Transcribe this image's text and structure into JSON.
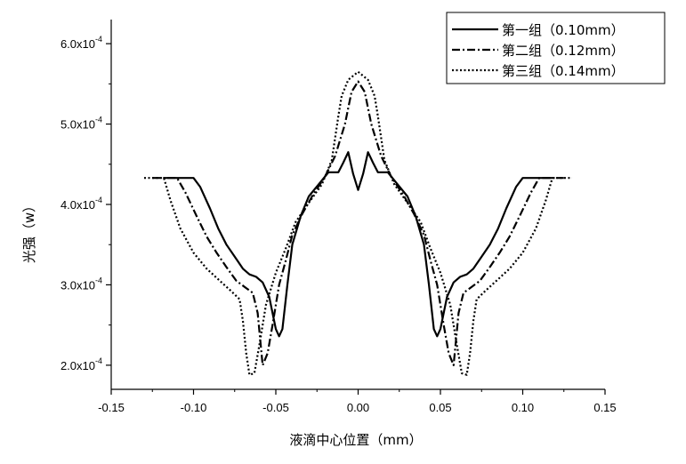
{
  "chart_data": {
    "type": "line",
    "xlabel": "液滴中心位置（mm）",
    "ylabel": "光强（w）",
    "xlim": [
      -0.15,
      0.15
    ],
    "ylim": [
      0.00017,
      0.00063
    ],
    "x_ticks": [
      "-0.15",
      "-0.10",
      "-0.05",
      "0.00",
      "0.05",
      "0.10",
      "0.15"
    ],
    "y_ticks": [
      {
        "mant": "2.0x10",
        "exp": "-4",
        "value": 0.0002
      },
      {
        "mant": "3.0x10",
        "exp": "-4",
        "value": 0.0003
      },
      {
        "mant": "4.0x10",
        "exp": "-4",
        "value": 0.0004
      },
      {
        "mant": "5.0x10",
        "exp": "-4",
        "value": 0.0005
      },
      {
        "mant": "6.0x10",
        "exp": "-4",
        "value": 0.0006
      }
    ],
    "legend_position": "top-right",
    "series": [
      {
        "name": "第一组（0.10mm）",
        "dash": "solid",
        "color": "#000000",
        "points": [
          [
            -0.118,
            0.000433
          ],
          [
            -0.1,
            0.000433
          ],
          [
            -0.096,
            0.000422
          ],
          [
            -0.09,
            0.000395
          ],
          [
            -0.085,
            0.00037
          ],
          [
            -0.08,
            0.00035
          ],
          [
            -0.075,
            0.000335
          ],
          [
            -0.07,
            0.00032
          ],
          [
            -0.066,
            0.000313
          ],
          [
            -0.062,
            0.00031
          ],
          [
            -0.058,
            0.000303
          ],
          [
            -0.054,
            0.000285
          ],
          [
            -0.05,
            0.000245
          ],
          [
            -0.048,
            0.000236
          ],
          [
            -0.046,
            0.000245
          ],
          [
            -0.043,
            0.0003
          ],
          [
            -0.04,
            0.00035
          ],
          [
            -0.035,
            0.000385
          ],
          [
            -0.03,
            0.00041
          ],
          [
            -0.024,
            0.000425
          ],
          [
            -0.018,
            0.00044
          ],
          [
            -0.012,
            0.00044
          ],
          [
            -0.009,
            0.000452
          ],
          [
            -0.006,
            0.000465
          ],
          [
            -0.003,
            0.000438
          ],
          [
            0.0,
            0.000418
          ],
          [
            0.003,
            0.000438
          ],
          [
            0.006,
            0.000465
          ],
          [
            0.009,
            0.000452
          ],
          [
            0.012,
            0.00044
          ],
          [
            0.018,
            0.00044
          ],
          [
            0.024,
            0.000425
          ],
          [
            0.03,
            0.00041
          ],
          [
            0.035,
            0.000385
          ],
          [
            0.04,
            0.00035
          ],
          [
            0.043,
            0.0003
          ],
          [
            0.046,
            0.000245
          ],
          [
            0.048,
            0.000236
          ],
          [
            0.05,
            0.000245
          ],
          [
            0.054,
            0.000285
          ],
          [
            0.058,
            0.000303
          ],
          [
            0.062,
            0.00031
          ],
          [
            0.066,
            0.000313
          ],
          [
            0.07,
            0.00032
          ],
          [
            0.075,
            0.000335
          ],
          [
            0.08,
            0.00035
          ],
          [
            0.085,
            0.00037
          ],
          [
            0.09,
            0.000395
          ],
          [
            0.096,
            0.000422
          ],
          [
            0.1,
            0.000433
          ],
          [
            0.118,
            0.000433
          ]
        ]
      },
      {
        "name": "第二组（0.12mm）",
        "dash": "dashdot",
        "color": "#000000",
        "points": [
          [
            -0.125,
            0.000433
          ],
          [
            -0.11,
            0.000433
          ],
          [
            -0.105,
            0.000415
          ],
          [
            -0.098,
            0.000385
          ],
          [
            -0.092,
            0.00036
          ],
          [
            -0.086,
            0.00034
          ],
          [
            -0.08,
            0.000322
          ],
          [
            -0.074,
            0.000305
          ],
          [
            -0.068,
            0.000296
          ],
          [
            -0.064,
            0.00029
          ],
          [
            -0.061,
            0.000265
          ],
          [
            -0.058,
            0.0002
          ],
          [
            -0.055,
            0.000215
          ],
          [
            -0.052,
            0.00025
          ],
          [
            -0.048,
            0.0003
          ],
          [
            -0.044,
            0.00033
          ],
          [
            -0.04,
            0.000362
          ],
          [
            -0.034,
            0.000388
          ],
          [
            -0.028,
            0.00041
          ],
          [
            -0.02,
            0.000435
          ],
          [
            -0.014,
            0.00046
          ],
          [
            -0.008,
            0.0005
          ],
          [
            -0.004,
            0.00054
          ],
          [
            0.0,
            0.000553
          ],
          [
            0.004,
            0.00054
          ],
          [
            0.008,
            0.0005
          ],
          [
            0.014,
            0.00046
          ],
          [
            0.02,
            0.000435
          ],
          [
            0.028,
            0.00041
          ],
          [
            0.034,
            0.000388
          ],
          [
            0.04,
            0.000362
          ],
          [
            0.044,
            0.00033
          ],
          [
            0.048,
            0.0003
          ],
          [
            0.052,
            0.00025
          ],
          [
            0.055,
            0.000215
          ],
          [
            0.058,
            0.0002
          ],
          [
            0.061,
            0.000265
          ],
          [
            0.064,
            0.00029
          ],
          [
            0.068,
            0.000296
          ],
          [
            0.074,
            0.000305
          ],
          [
            0.08,
            0.000322
          ],
          [
            0.086,
            0.00034
          ],
          [
            0.092,
            0.00036
          ],
          [
            0.098,
            0.000385
          ],
          [
            0.105,
            0.000415
          ],
          [
            0.11,
            0.000433
          ],
          [
            0.125,
            0.000433
          ]
        ]
      },
      {
        "name": "第三组（0.14mm）",
        "dash": "dotted",
        "color": "#000000",
        "points": [
          [
            -0.13,
            0.000433
          ],
          [
            -0.118,
            0.000433
          ],
          [
            -0.114,
            0.000405
          ],
          [
            -0.108,
            0.00037
          ],
          [
            -0.1,
            0.00034
          ],
          [
            -0.092,
            0.00032
          ],
          [
            -0.084,
            0.000305
          ],
          [
            -0.077,
            0.000292
          ],
          [
            -0.072,
            0.000282
          ],
          [
            -0.07,
            0.000255
          ],
          [
            -0.068,
            0.000215
          ],
          [
            -0.066,
            0.000188
          ],
          [
            -0.063,
            0.00019
          ],
          [
            -0.06,
            0.000225
          ],
          [
            -0.056,
            0.000275
          ],
          [
            -0.05,
            0.000315
          ],
          [
            -0.044,
            0.000345
          ],
          [
            -0.038,
            0.000378
          ],
          [
            -0.03,
            0.000402
          ],
          [
            -0.022,
            0.000425
          ],
          [
            -0.016,
            0.000455
          ],
          [
            -0.012,
            0.00051
          ],
          [
            -0.01,
            0.000535
          ],
          [
            -0.006,
            0.000555
          ],
          [
            0.0,
            0.000565
          ],
          [
            0.006,
            0.000555
          ],
          [
            0.01,
            0.000535
          ],
          [
            0.012,
            0.00051
          ],
          [
            0.016,
            0.000455
          ],
          [
            0.022,
            0.000425
          ],
          [
            0.03,
            0.000402
          ],
          [
            0.038,
            0.000378
          ],
          [
            0.044,
            0.000345
          ],
          [
            0.05,
            0.000315
          ],
          [
            0.056,
            0.000275
          ],
          [
            0.06,
            0.000225
          ],
          [
            0.063,
            0.00019
          ],
          [
            0.066,
            0.000188
          ],
          [
            0.068,
            0.000215
          ],
          [
            0.07,
            0.000255
          ],
          [
            0.072,
            0.000282
          ],
          [
            0.077,
            0.000292
          ],
          [
            0.084,
            0.000305
          ],
          [
            0.092,
            0.00032
          ],
          [
            0.1,
            0.00034
          ],
          [
            0.108,
            0.00037
          ],
          [
            0.114,
            0.000405
          ],
          [
            0.118,
            0.000433
          ],
          [
            0.13,
            0.000433
          ]
        ]
      }
    ]
  }
}
